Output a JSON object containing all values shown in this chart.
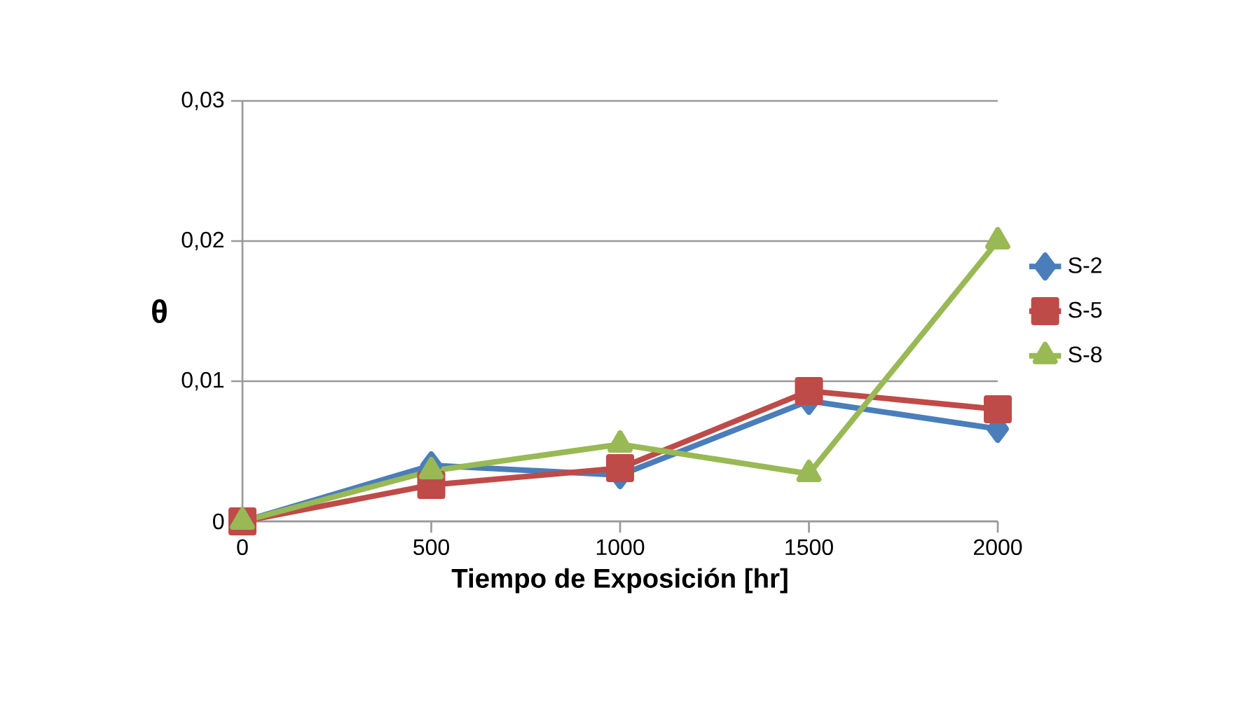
{
  "chart_data": {
    "type": "line",
    "xlabel": "**Tiempo de Exposición  [hr]**",
    "ylabel": "**θ**",
    "x": [
      0,
      500,
      1000,
      1500,
      2000
    ],
    "series": [
      {
        "name": "S-2",
        "color": "#4a7ebb",
        "marker": "diamond",
        "values": [
          0,
          0.004,
          0.0033,
          0.0086,
          0.0066
        ]
      },
      {
        "name": "S-5",
        "color": "#be4b48",
        "marker": "square",
        "values": [
          0,
          0.0026,
          0.0038,
          0.0093,
          0.008
        ]
      },
      {
        "name": "S-8",
        "color": "#98b954",
        "marker": "triangle",
        "values": [
          0,
          0.0036,
          0.0055,
          0.0034,
          0.02
        ]
      }
    ],
    "xlim": [
      0,
      2000
    ],
    "ylim": [
      0,
      0.03
    ],
    "xticks": [
      0,
      500,
      1000,
      1500,
      2000
    ],
    "yticks": [
      {
        "value": 0,
        "label": "0"
      },
      {
        "value": 0.01,
        "label": "0,01"
      },
      {
        "value": 0.02,
        "label": "0,02"
      },
      {
        "value": 0.03,
        "label": "0,03"
      }
    ],
    "grid": "y",
    "legend": "right",
    "line_style": "solid"
  }
}
